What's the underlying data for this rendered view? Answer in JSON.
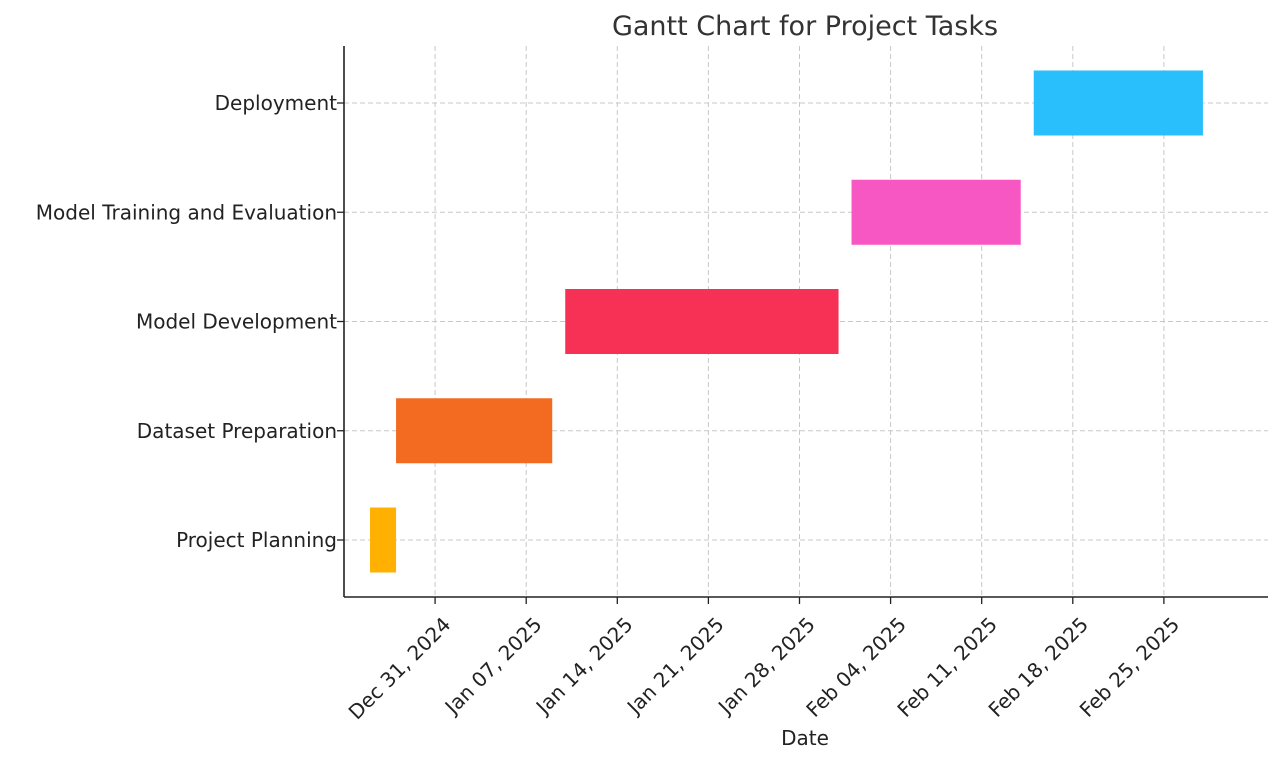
{
  "chart_data": {
    "type": "gantt",
    "title": "Gantt Chart for Project Tasks",
    "xlabel": "Date",
    "ylabel": "",
    "grid": true,
    "xlim": [
      "2024-12-24",
      "2025-03-05"
    ],
    "x_ticks": [
      {
        "date": "2024-12-31",
        "label": "Dec 31, 2024"
      },
      {
        "date": "2025-01-07",
        "label": "Jan 07, 2025"
      },
      {
        "date": "2025-01-14",
        "label": "Jan 14, 2025"
      },
      {
        "date": "2025-01-21",
        "label": "Jan 21, 2025"
      },
      {
        "date": "2025-01-28",
        "label": "Jan 28, 2025"
      },
      {
        "date": "2025-02-04",
        "label": "Feb 04, 2025"
      },
      {
        "date": "2025-02-11",
        "label": "Feb 11, 2025"
      },
      {
        "date": "2025-02-18",
        "label": "Feb 18, 2025"
      },
      {
        "date": "2025-02-25",
        "label": "Feb 25, 2025"
      }
    ],
    "tasks": [
      {
        "name": "Project Planning",
        "start": "2024-12-26",
        "end": "2024-12-28",
        "color": "#FFB000"
      },
      {
        "name": "Dataset Preparation",
        "start": "2024-12-28",
        "end": "2025-01-09",
        "color": "#F26B21"
      },
      {
        "name": "Model Development",
        "start": "2025-01-10",
        "end": "2025-01-31",
        "color": "#F73155"
      },
      {
        "name": "Model Training and Evaluation",
        "start": "2025-02-01",
        "end": "2025-02-14",
        "color": "#F657C3"
      },
      {
        "name": "Deployment",
        "start": "2025-02-15",
        "end": "2025-02-28",
        "color": "#29BEFC"
      }
    ]
  }
}
